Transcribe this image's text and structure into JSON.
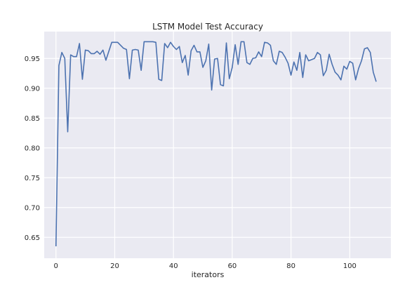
{
  "chart_data": {
    "type": "line",
    "title": "LSTM Model Test Accuracy",
    "xlabel": "iterators",
    "ylabel": "",
    "xlim": [
      -4,
      114
    ],
    "ylim": [
      0.615,
      0.995
    ],
    "xticks": [
      0,
      20,
      40,
      60,
      80,
      100
    ],
    "yticks": [
      0.65,
      0.7,
      0.75,
      0.8,
      0.85,
      0.9,
      0.95
    ],
    "grid": true,
    "line_color": "#4c72b0",
    "background_color": "#eaeaf2",
    "series": [
      {
        "x": [
          0,
          1,
          2,
          3,
          4,
          5,
          6,
          7,
          8,
          9,
          10,
          11,
          12,
          13,
          14,
          15,
          16,
          17,
          18,
          19,
          20,
          21,
          22,
          23,
          24,
          25,
          26,
          27,
          28,
          29,
          30,
          31,
          32,
          33,
          34,
          35,
          36,
          37,
          38,
          39,
          40,
          41,
          42,
          43,
          44,
          45,
          46,
          47,
          48,
          49,
          50,
          51,
          52,
          53,
          54,
          55,
          56,
          57,
          58,
          59,
          60,
          61,
          62,
          63,
          64,
          65,
          66,
          67,
          68,
          69,
          70,
          71,
          72,
          73,
          74,
          75,
          76,
          77,
          78,
          79,
          80,
          81,
          82,
          83,
          84,
          85,
          86,
          87,
          88,
          89,
          90,
          91,
          92,
          93,
          94,
          95,
          96,
          97,
          98,
          99,
          100,
          101,
          102,
          103,
          104,
          105,
          106,
          107,
          108,
          109
        ],
        "y": [
          0.635,
          0.938,
          0.96,
          0.95,
          0.827,
          0.956,
          0.953,
          0.953,
          0.975,
          0.915,
          0.964,
          0.963,
          0.958,
          0.958,
          0.962,
          0.957,
          0.964,
          0.947,
          0.962,
          0.977,
          0.977,
          0.977,
          0.972,
          0.967,
          0.965,
          0.916,
          0.964,
          0.965,
          0.964,
          0.93,
          0.978,
          0.978,
          0.978,
          0.978,
          0.977,
          0.915,
          0.913,
          0.975,
          0.968,
          0.977,
          0.97,
          0.965,
          0.97,
          0.943,
          0.955,
          0.922,
          0.963,
          0.972,
          0.961,
          0.961,
          0.935,
          0.946,
          0.974,
          0.897,
          0.949,
          0.95,
          0.906,
          0.904,
          0.976,
          0.916,
          0.935,
          0.973,
          0.94,
          0.978,
          0.978,
          0.943,
          0.94,
          0.95,
          0.951,
          0.961,
          0.953,
          0.977,
          0.976,
          0.972,
          0.946,
          0.94,
          0.962,
          0.96,
          0.952,
          0.942,
          0.922,
          0.944,
          0.93,
          0.96,
          0.918,
          0.956,
          0.946,
          0.948,
          0.95,
          0.96,
          0.956,
          0.921,
          0.93,
          0.957,
          0.94,
          0.927,
          0.922,
          0.914,
          0.937,
          0.932,
          0.945,
          0.942,
          0.914,
          0.933,
          0.946,
          0.966,
          0.968,
          0.96,
          0.927,
          0.911
        ]
      }
    ]
  }
}
